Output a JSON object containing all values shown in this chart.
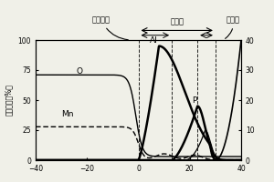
{
  "xlim": [
    -40,
    40
  ],
  "ylim_left": [
    0,
    100
  ],
  "ylim_right": [
    0,
    40
  ],
  "xticks": [
    -40,
    -20,
    0,
    20,
    40
  ],
  "yticks_left": [
    0,
    25,
    50,
    75,
    100
  ],
  "yticks_right": [
    0,
    10,
    20,
    30,
    40
  ],
  "ylabel_left": "原子浓度（%）",
  "label_oxide": "氧化物侧",
  "label_coating": "被覆层",
  "label_surface": "表层侧",
  "label_O": "O",
  "label_Mn": "Mn",
  "label_Al": "Al",
  "label_P": "P",
  "vlines": [
    0,
    13,
    23,
    30
  ],
  "bg_color": "#f0f0e8",
  "line_color": "#000000"
}
